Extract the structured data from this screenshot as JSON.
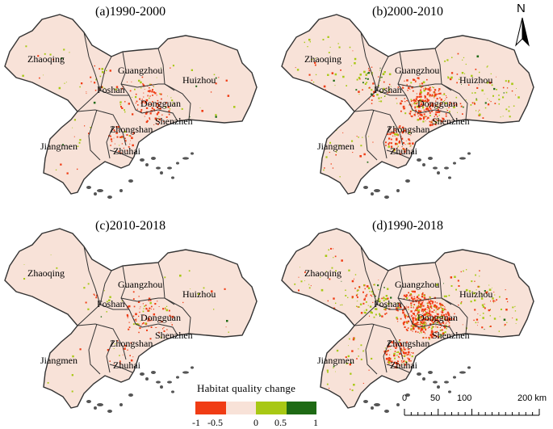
{
  "panels": [
    {
      "title": "(a)1990-2000",
      "change_intensity": 0.2
    },
    {
      "title": "(b)2000-2010",
      "change_intensity": 0.6
    },
    {
      "title": "(c)2010-2018",
      "change_intensity": 0.1
    },
    {
      "title": "(d)1990-2018",
      "change_intensity": 0.9
    }
  ],
  "city_labels": {
    "zhaoqing": "Zhaoqing",
    "guangzhou": "Guangzhou",
    "huizhou": "Huizhou",
    "foshan": "Foshan",
    "dongguan": "Dongguan",
    "shenzhen": "Shenzhen",
    "zhongshan": "Zhongshan",
    "jiangmen": "Jiangmen",
    "zhuhai": "Zhuhai"
  },
  "north_arrow": {
    "label": "N"
  },
  "legend": {
    "title": "Habitat quality change",
    "classes": [
      {
        "color": "#f03c14"
      },
      {
        "color": "#f8e2d8"
      },
      {
        "color": "#a8c814"
      },
      {
        "color": "#1e6a14"
      }
    ],
    "ticks": [
      "-1",
      "-0.5",
      "0",
      "0.5",
      "1"
    ]
  },
  "scale_bar": {
    "labels": [
      "0",
      "50",
      "100",
      "200 km"
    ]
  },
  "colors": {
    "background_fill": "#f8e2d8",
    "decrease": "#f03c14",
    "increase": "#a8c814",
    "strong_increase": "#1e6a14",
    "boundary": "#333333"
  }
}
